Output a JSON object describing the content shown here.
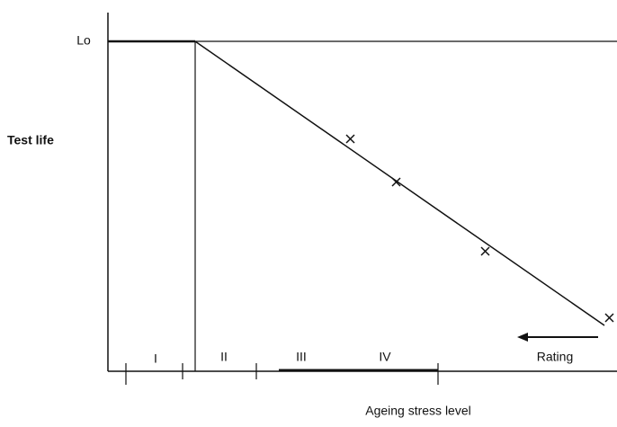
{
  "diagram": {
    "y_axis_marker": "Lo",
    "y_axis_label": "Test life",
    "x_axis_label": "Ageing stress level",
    "regions": [
      "I",
      "II",
      "III",
      "IV"
    ],
    "arrow_label": "Rating"
  }
}
